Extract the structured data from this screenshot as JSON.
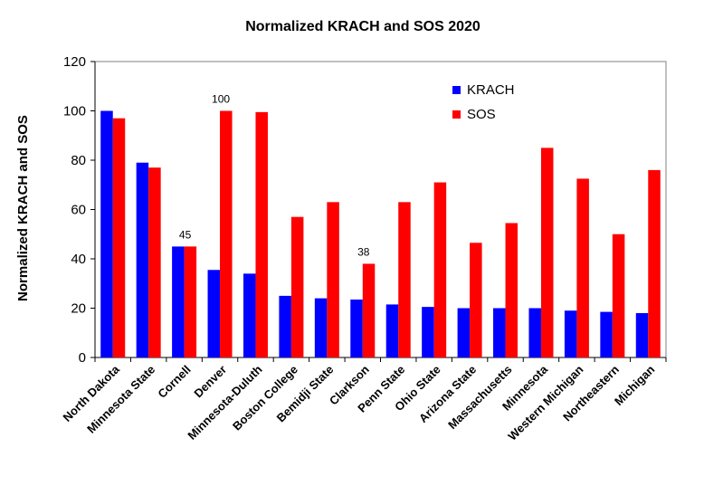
{
  "chart_data": {
    "type": "bar",
    "title": "Normalized KRACH and SOS 2020",
    "xlabel": "",
    "ylabel": "Normalized KRACH and SOS",
    "ylim": [
      0,
      120
    ],
    "yticks": [
      0,
      20,
      40,
      60,
      80,
      100,
      120
    ],
    "grid": false,
    "legend_position": "top-right",
    "categories": [
      "North Dakota",
      "Minnesota State",
      "Cornell",
      "Denver",
      "Minnesota-Duluth",
      "Boston College",
      "Bemidji State",
      "Clarkson",
      "Penn State",
      "Ohio State",
      "Arizona State",
      "Massachusetts",
      "Minnesota",
      "Western Michigan",
      "Northeastern",
      "Michigan"
    ],
    "series": [
      {
        "name": "KRACH",
        "color": "#0000ff",
        "values": [
          100,
          79,
          45,
          35.5,
          34,
          25,
          24,
          23.5,
          21.5,
          20.5,
          20,
          20,
          20,
          19,
          18.5,
          18
        ]
      },
      {
        "name": "SOS",
        "color": "#ff0000",
        "values": [
          97,
          77,
          45,
          100,
          99.5,
          57,
          63,
          38,
          63,
          71,
          46.5,
          54.5,
          85,
          72.5,
          50,
          76
        ]
      }
    ],
    "annotations": [
      {
        "text": "100",
        "category": "Denver",
        "value": 100
      },
      {
        "text": "45",
        "category": "Cornell",
        "value": 45
      },
      {
        "text": "38",
        "category": "Clarkson",
        "value": 38
      }
    ]
  }
}
